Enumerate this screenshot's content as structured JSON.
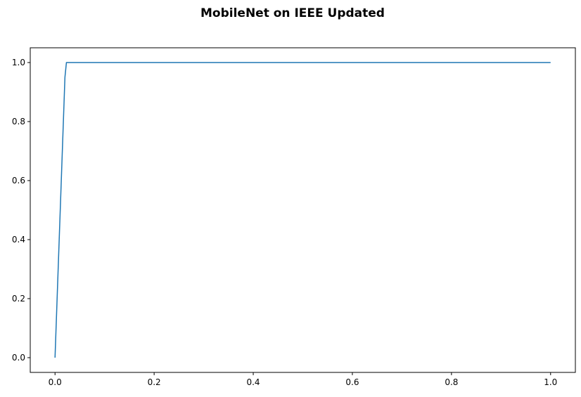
{
  "chart_data": {
    "type": "line",
    "title": "MobileNet on IEEE Updated",
    "xlabel": "",
    "ylabel": "",
    "xlim": [
      -0.05,
      1.05
    ],
    "ylim": [
      -0.05,
      1.05
    ],
    "x_ticks": [
      "0.0",
      "0.2",
      "0.4",
      "0.6",
      "0.8",
      "1.0"
    ],
    "y_ticks": [
      "0.0",
      "0.2",
      "0.4",
      "0.6",
      "0.8",
      "1.0"
    ],
    "grid": false,
    "series": [
      {
        "color": "#1f77b4",
        "x": [
          0.0,
          0.02,
          0.023,
          1.0
        ],
        "y": [
          0.0,
          0.95,
          1.0,
          1.0
        ]
      }
    ]
  }
}
